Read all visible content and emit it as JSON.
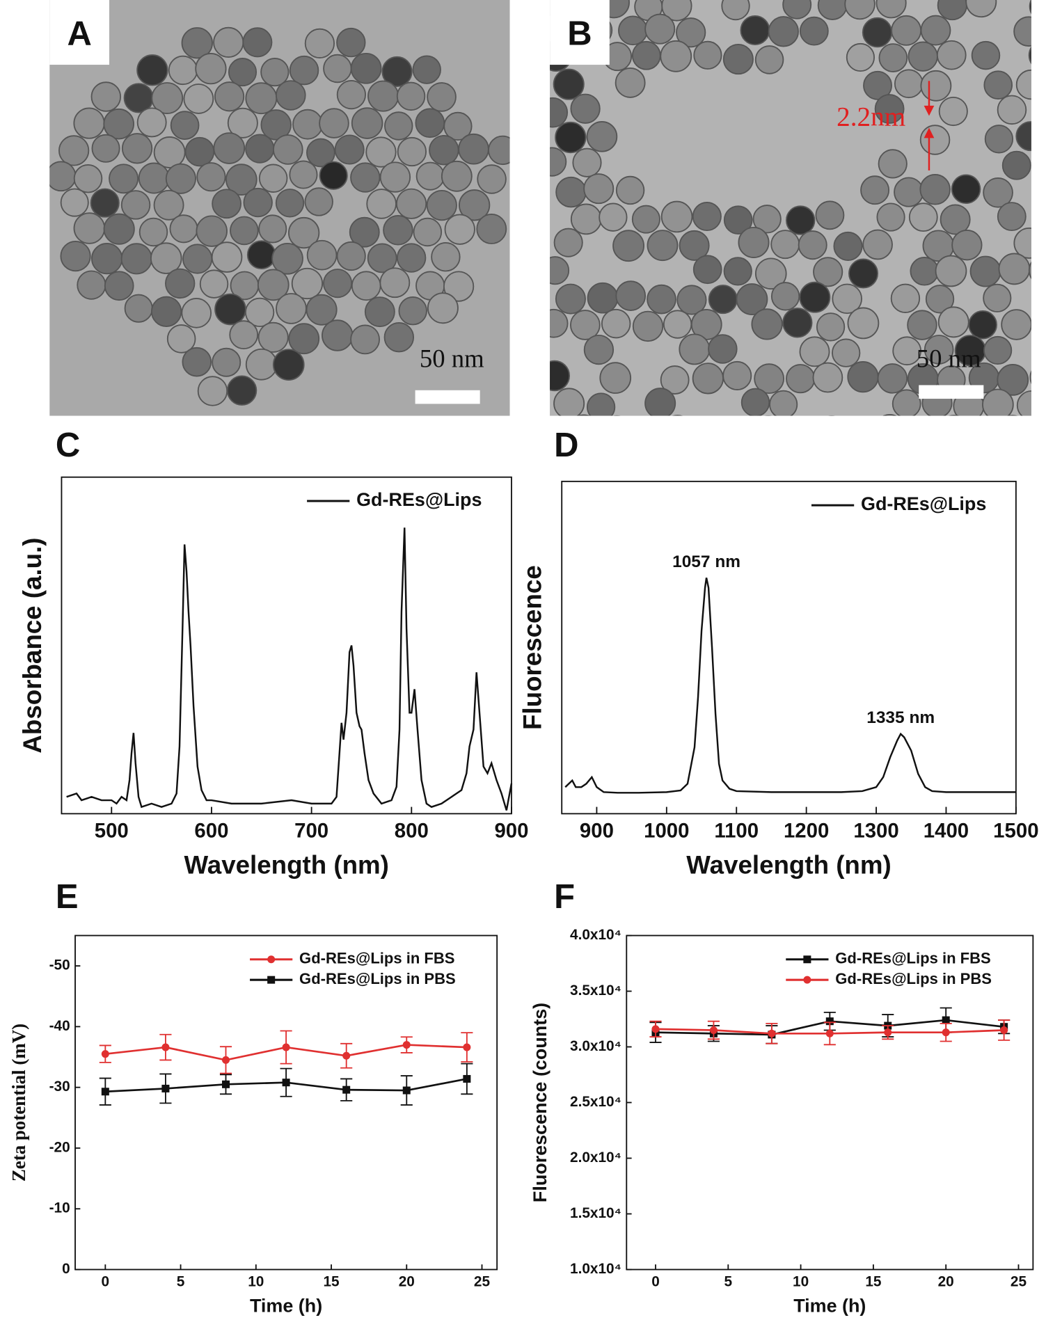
{
  "images": [
    {
      "label": "A",
      "scale_bar": "50 nm"
    },
    {
      "label": "B",
      "scale_bar": "50 nm",
      "annotation": "2.2nm"
    }
  ],
  "chart_data": [
    {
      "type": "line",
      "panel_label": "C",
      "x_label": "Wavelength (nm)",
      "y_label": "Absorbance (a.u.)",
      "xlim": [
        450,
        900
      ],
      "xticks": [
        500,
        600,
        700,
        800,
        900
      ],
      "ylim": [
        0,
        1
      ],
      "legend": "upper right",
      "x": [
        455,
        465,
        470,
        480,
        490,
        500,
        505,
        510,
        515,
        518,
        520,
        522,
        524,
        527,
        530,
        540,
        550,
        560,
        565,
        568,
        571,
        573,
        575,
        577,
        579,
        582,
        586,
        590,
        595,
        600,
        620,
        650,
        680,
        700,
        720,
        725,
        730,
        732,
        735,
        738,
        740,
        742,
        745,
        748,
        750,
        753,
        757,
        762,
        770,
        780,
        785,
        788,
        790,
        793,
        795,
        798,
        800,
        803,
        806,
        810,
        815,
        820,
        830,
        840,
        850,
        855,
        858,
        862,
        865,
        868,
        872,
        876,
        880,
        885,
        890,
        895,
        900
      ],
      "series": [
        {
          "name": "Gd-REs@Lips",
          "color": "#111111",
          "values": [
            0.05,
            0.06,
            0.04,
            0.05,
            0.04,
            0.04,
            0.03,
            0.05,
            0.04,
            0.1,
            0.18,
            0.24,
            0.15,
            0.05,
            0.02,
            0.03,
            0.02,
            0.03,
            0.06,
            0.2,
            0.55,
            0.8,
            0.72,
            0.6,
            0.5,
            0.32,
            0.14,
            0.07,
            0.04,
            0.04,
            0.03,
            0.03,
            0.04,
            0.03,
            0.03,
            0.05,
            0.27,
            0.22,
            0.3,
            0.48,
            0.5,
            0.44,
            0.3,
            0.26,
            0.25,
            0.18,
            0.1,
            0.06,
            0.03,
            0.04,
            0.08,
            0.25,
            0.6,
            0.85,
            0.55,
            0.3,
            0.3,
            0.37,
            0.25,
            0.1,
            0.03,
            0.02,
            0.03,
            0.05,
            0.07,
            0.12,
            0.2,
            0.25,
            0.42,
            0.3,
            0.14,
            0.12,
            0.15,
            0.1,
            0.06,
            0.01,
            0.09
          ]
        }
      ]
    },
    {
      "type": "line",
      "panel_label": "D",
      "x_label": "Wavelength (nm)",
      "y_label": "Fluorescence",
      "xlim": [
        850,
        1500
      ],
      "xticks": [
        900,
        1000,
        1100,
        1200,
        1300,
        1400,
        1500
      ],
      "ylim": [
        0,
        1
      ],
      "legend": "upper right",
      "x": [
        855,
        860,
        865,
        870,
        878,
        885,
        893,
        900,
        910,
        930,
        960,
        1000,
        1020,
        1030,
        1040,
        1045,
        1050,
        1055,
        1057,
        1060,
        1065,
        1070,
        1075,
        1080,
        1090,
        1100,
        1150,
        1200,
        1250,
        1280,
        1300,
        1310,
        1320,
        1330,
        1335,
        1340,
        1350,
        1360,
        1370,
        1380,
        1400,
        1450,
        1500
      ],
      "series": [
        {
          "name": "Gd-REs@Lips",
          "color": "#111111",
          "values": [
            0.08,
            0.09,
            0.1,
            0.08,
            0.08,
            0.09,
            0.11,
            0.08,
            0.065,
            0.063,
            0.063,
            0.065,
            0.07,
            0.09,
            0.2,
            0.35,
            0.55,
            0.68,
            0.71,
            0.68,
            0.5,
            0.3,
            0.15,
            0.1,
            0.075,
            0.068,
            0.065,
            0.065,
            0.065,
            0.068,
            0.08,
            0.11,
            0.17,
            0.22,
            0.24,
            0.23,
            0.19,
            0.12,
            0.08,
            0.068,
            0.065,
            0.065,
            0.065
          ]
        }
      ],
      "annotations": [
        {
          "text": "1057 nm",
          "x": 1057
        },
        {
          "text": "1335 nm",
          "x": 1335
        }
      ]
    },
    {
      "type": "line",
      "panel_label": "E",
      "x_label": "Time (h)",
      "y_label": "Zeta potential (mV)",
      "xlim": [
        -2,
        26
      ],
      "xticks": [
        0,
        5,
        10,
        15,
        20,
        25
      ],
      "ylim": [
        0,
        -55
      ],
      "yticks": [
        0,
        -10,
        -20,
        -30,
        -40,
        -50
      ],
      "legend": "upper right",
      "x": [
        0,
        4,
        8,
        12,
        16,
        20,
        24
      ],
      "series": [
        {
          "name": "Gd-REs@Lips in FBS",
          "color": "#e03030",
          "marker": "circle",
          "values": [
            -35.5,
            -36.6,
            -34.5,
            -36.6,
            -35.2,
            -37,
            -36.6
          ],
          "errors": [
            1.4,
            2.1,
            2.2,
            2.7,
            2.0,
            1.3,
            2.4
          ]
        },
        {
          "name": "Gd-REs@Lips in PBS",
          "color": "#111111",
          "marker": "square",
          "values": [
            -29.3,
            -29.8,
            -30.5,
            -30.8,
            -29.6,
            -29.5,
            -31.4
          ],
          "errors": [
            2.2,
            2.4,
            1.6,
            2.3,
            1.8,
            2.4,
            2.5
          ]
        }
      ]
    },
    {
      "type": "line",
      "panel_label": "F",
      "x_label": "Time (h)",
      "y_label": "Fluorescence (counts)",
      "xlim": [
        -2,
        26
      ],
      "xticks": [
        0,
        5,
        10,
        15,
        20,
        25
      ],
      "ylim": [
        10000,
        40000
      ],
      "yticks": [
        {
          "value": 10000,
          "label": "1.0x10⁴"
        },
        {
          "value": 15000,
          "label": "1.5x10⁴"
        },
        {
          "value": 20000,
          "label": "2.0x10⁴"
        },
        {
          "value": 25000,
          "label": "2.5x10⁴"
        },
        {
          "value": 30000,
          "label": "3.0x10⁴"
        },
        {
          "value": 35000,
          "label": "3.5x10⁴"
        },
        {
          "value": 40000,
          "label": "4.0x10⁴"
        }
      ],
      "legend": "upper right",
      "x": [
        0,
        4,
        8,
        12,
        16,
        20,
        24
      ],
      "series": [
        {
          "name": "Gd-REs@Lips in FBS",
          "color": "#111111",
          "marker": "square",
          "values": [
            31300,
            31200,
            31100,
            32300,
            31900,
            32400,
            31800
          ],
          "errors": [
            900,
            700,
            800,
            800,
            1000,
            1100,
            600
          ]
        },
        {
          "name": "Gd-REs@Lips in PBS",
          "color": "#e03030",
          "marker": "circle",
          "values": [
            31600,
            31500,
            31200,
            31200,
            31300,
            31300,
            31500
          ],
          "errors": [
            700,
            800,
            900,
            1000,
            600,
            800,
            900
          ]
        }
      ]
    }
  ]
}
